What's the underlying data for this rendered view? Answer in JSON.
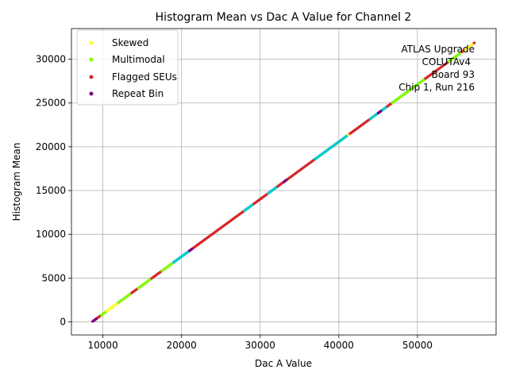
{
  "chart_data": {
    "type": "scatter",
    "title": "Histogram Mean vs Dac A Value for Channel 2",
    "xlabel": "Dac A Value",
    "ylabel": "Histogram Mean",
    "xlim": [
      6000,
      60000
    ],
    "ylim": [
      -1500,
      33500
    ],
    "xticks": [
      10000,
      20000,
      30000,
      40000,
      50000
    ],
    "yticks": [
      0,
      5000,
      10000,
      15000,
      20000,
      25000,
      30000
    ],
    "xtick_labels": [
      "10000",
      "20000",
      "30000",
      "40000",
      "50000"
    ],
    "ytick_labels": [
      "0",
      "5000",
      "10000",
      "15000",
      "20000",
      "25000",
      "30000"
    ],
    "grid": true,
    "legend_position": "upper-left",
    "annotation_lines": [
      "ATLAS Upgrade",
      "COLUTAv4",
      "Board 93",
      "Chip 1, Run 216"
    ],
    "annotation_position": "upper-right",
    "fit": {
      "slope": 0.6556,
      "intercept": -5657
    },
    "series": [
      {
        "name": "Skewed",
        "color": "#ffff33",
        "segments": [
          [
            10500,
            11800
          ],
          [
            40500,
            41200
          ],
          [
            56000,
            57000
          ]
        ]
      },
      {
        "name": "Multimodal",
        "color": "#7fff00",
        "segments": [
          [
            9800,
            11500
          ],
          [
            11900,
            13500
          ],
          [
            14500,
            16000
          ],
          [
            17500,
            19000
          ],
          [
            46800,
            50800
          ],
          [
            54000,
            55500
          ]
        ]
      },
      {
        "name": "Flagged SEUs",
        "color": "#d62728",
        "segments": [
          [
            8700,
            57300
          ]
        ]
      },
      {
        "name": "Repeat Bin",
        "color": "#800080",
        "segments": [
          [
            8700,
            9200
          ],
          [
            21000,
            21400
          ],
          [
            33000,
            33400
          ],
          [
            45000,
            45400
          ]
        ]
      },
      {
        "name": "",
        "color": "#00ced1",
        "segments": [
          [
            19000,
            21000
          ],
          [
            31000,
            32000
          ],
          [
            37000,
            41000
          ],
          [
            44000,
            46000
          ],
          [
            28000,
            29000
          ]
        ]
      }
    ]
  }
}
